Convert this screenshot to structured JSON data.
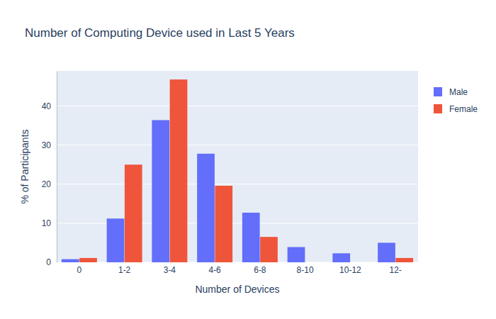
{
  "chart_data": {
    "type": "bar",
    "title": "Number of Computing Device used in Last 5 Years",
    "x_label": "Number of Devices",
    "y_label": "% of Participants",
    "categories": [
      "0",
      "1-2",
      "3-4",
      "4-6",
      "6-8",
      "8-10",
      "10-12",
      "12-"
    ],
    "series": [
      {
        "name": "Male",
        "color": "#636efa",
        "values": [
          0.8,
          11.2,
          36.4,
          27.8,
          12.7,
          3.9,
          2.3,
          5.0
        ]
      },
      {
        "name": "Female",
        "color": "#ef553b",
        "values": [
          1.1,
          25.0,
          46.8,
          19.6,
          6.5,
          0,
          0,
          1.1
        ]
      }
    ],
    "ylim": [
      0,
      49
    ],
    "yticks": [
      0,
      10,
      20,
      30,
      40
    ],
    "grid": true,
    "legend": "right"
  }
}
